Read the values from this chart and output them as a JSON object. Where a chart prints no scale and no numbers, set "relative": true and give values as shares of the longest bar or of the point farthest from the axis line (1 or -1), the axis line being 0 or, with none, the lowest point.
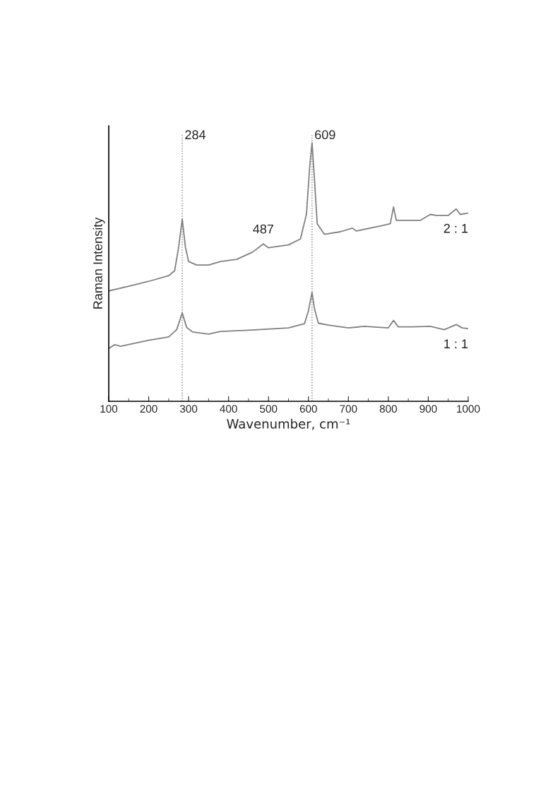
{
  "chart_data": {
    "type": "line",
    "relative": true,
    "xlabel": "Wavenumber, cm⁻¹",
    "ylabel": "Raman Intensity",
    "xlim": [
      100,
      1000
    ],
    "xticks": [
      100,
      200,
      300,
      400,
      500,
      600,
      700,
      800,
      900,
      1000
    ],
    "tick_labels": "x",
    "grid": false,
    "legend": false,
    "marker": "none",
    "line_style": "solid",
    "ref_lines": [
      {
        "axis": "x",
        "value": 284,
        "label": "284",
        "color": "#808080",
        "line_style": "dotted"
      },
      {
        "axis": "x",
        "value": 609,
        "label": "609",
        "color": "#808080",
        "line_style": "dotted"
      }
    ],
    "annotations": [
      {
        "text": "487",
        "x": 487,
        "y": 0.609
      }
    ],
    "series": [
      {
        "name": "2 : 1",
        "color": "#808080",
        "x": [
          100,
          150,
          200,
          250,
          265,
          275,
          284,
          292,
          300,
          320,
          350,
          380,
          420,
          460,
          487,
          500,
          550,
          580,
          595,
          603,
          609,
          615,
          622,
          640,
          680,
          710,
          720,
          780,
          805,
          813,
          820,
          830,
          880,
          905,
          920,
          950,
          970,
          980,
          1000
        ],
        "values": [
          0.427,
          0.445,
          0.464,
          0.486,
          0.505,
          0.596,
          0.705,
          0.596,
          0.541,
          0.527,
          0.527,
          0.541,
          0.549,
          0.577,
          0.609,
          0.594,
          0.605,
          0.628,
          0.724,
          0.904,
          1.0,
          0.86,
          0.687,
          0.646,
          0.656,
          0.67,
          0.659,
          0.678,
          0.687,
          0.752,
          0.7,
          0.7,
          0.7,
          0.723,
          0.719,
          0.719,
          0.744,
          0.723,
          0.728
        ]
      },
      {
        "name": "1 : 1",
        "color": "#808080",
        "x": [
          100,
          115,
          130,
          150,
          200,
          250,
          270,
          284,
          295,
          310,
          350,
          380,
          450,
          550,
          590,
          600,
          609,
          615,
          625,
          650,
          700,
          740,
          800,
          813,
          825,
          860,
          905,
          940,
          970,
          985,
          1000
        ],
        "values": [
          0.204,
          0.219,
          0.213,
          0.22,
          0.236,
          0.249,
          0.277,
          0.342,
          0.286,
          0.268,
          0.26,
          0.27,
          0.275,
          0.284,
          0.3,
          0.35,
          0.421,
          0.359,
          0.302,
          0.295,
          0.284,
          0.29,
          0.284,
          0.313,
          0.288,
          0.288,
          0.29,
          0.277,
          0.297,
          0.284,
          0.281
        ]
      }
    ]
  }
}
